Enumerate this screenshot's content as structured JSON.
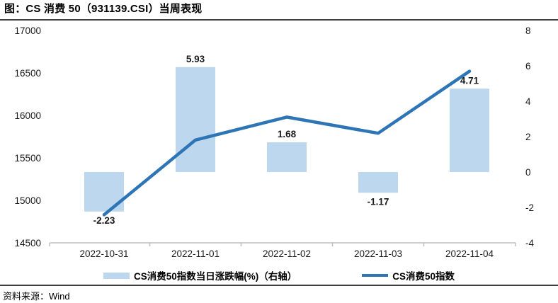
{
  "header": {
    "title": "图：CS 消费 50（931139.CSI）当周表现"
  },
  "footer": {
    "source": "资料来源：Wind"
  },
  "chart_data": {
    "type": "combo",
    "title": "CS 消费 50（931139.CSI）当周表现",
    "categories": [
      "2022-10-31",
      "2022-11-01",
      "2022-11-02",
      "2022-11-03",
      "2022-11-04"
    ],
    "series": [
      {
        "name": "CS消费50指数当日涨跌幅(%)（右轴）",
        "type": "bar",
        "axis": "right",
        "color": "#BDD7EE",
        "values": [
          -2.23,
          5.93,
          1.68,
          -1.17,
          4.71
        ],
        "data_labels": [
          "-2.23",
          "5.93",
          "1.68",
          "-1.17",
          "4.71"
        ],
        "data_label_color": "#FF0000"
      },
      {
        "name": "CS消费50指数",
        "type": "line",
        "axis": "left",
        "color": "#2E75B6",
        "values": [
          14830,
          15710,
          15980,
          15790,
          16520
        ]
      }
    ],
    "left_axis": {
      "min": 14500,
      "max": 17000,
      "step": 500,
      "ticks": [
        "17000",
        "16500",
        "16000",
        "15500",
        "15000",
        "14500"
      ]
    },
    "right_axis": {
      "min": -4,
      "max": 8,
      "step": 2,
      "ticks": [
        "8",
        "6",
        "4",
        "2",
        "0",
        "-2",
        "-4"
      ]
    },
    "x_axis_color": "#BFBFBF",
    "legend_position": "bottom",
    "grid": false
  }
}
